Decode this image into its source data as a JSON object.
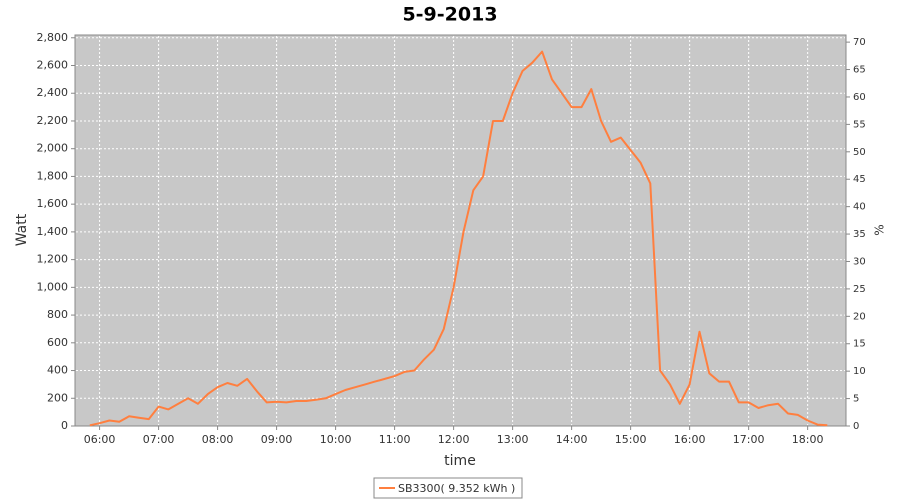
{
  "chart_data": {
    "type": "line",
    "title": "5-9-2013",
    "x_label": "time",
    "y_label": "Watt",
    "y2_label": "%",
    "x": [
      "05:50",
      "06:00",
      "06:10",
      "06:20",
      "06:30",
      "06:40",
      "06:50",
      "07:00",
      "07:10",
      "07:20",
      "07:30",
      "07:40",
      "07:50",
      "08:00",
      "08:10",
      "08:20",
      "08:30",
      "08:40",
      "08:50",
      "09:00",
      "09:10",
      "09:20",
      "09:30",
      "09:40",
      "09:50",
      "10:00",
      "10:10",
      "10:20",
      "10:30",
      "10:40",
      "10:50",
      "11:00",
      "11:10",
      "11:20",
      "11:30",
      "11:40",
      "11:50",
      "12:00",
      "12:10",
      "12:20",
      "12:30",
      "12:40",
      "12:50",
      "13:00",
      "13:10",
      "13:20",
      "13:30",
      "13:40",
      "13:50",
      "14:00",
      "14:10",
      "14:20",
      "14:30",
      "14:40",
      "14:50",
      "15:00",
      "15:10",
      "15:20",
      "15:30",
      "15:40",
      "15:50",
      "16:00",
      "16:10",
      "16:20",
      "16:30",
      "16:40",
      "16:50",
      "17:00",
      "17:10",
      "17:20",
      "17:30",
      "17:40",
      "17:50",
      "18:00",
      "18:10",
      "18:20"
    ],
    "series": [
      {
        "name": "SB3300( 9.352 kWh )",
        "color": "#ff7f3f",
        "values": [
          5,
          20,
          40,
          30,
          70,
          60,
          50,
          140,
          120,
          160,
          200,
          160,
          230,
          280,
          310,
          290,
          340,
          250,
          170,
          175,
          170,
          180,
          180,
          190,
          200,
          230,
          260,
          280,
          300,
          320,
          340,
          360,
          390,
          400,
          480,
          550,
          700,
          1000,
          1400,
          1700,
          1800,
          2200,
          2200,
          2400,
          2560,
          2620,
          2700,
          2500,
          2400,
          2300,
          2300,
          2430,
          2200,
          2050,
          2080,
          1990,
          1900,
          1750,
          400,
          300,
          160,
          300,
          680,
          380,
          320,
          320,
          170,
          170,
          130,
          150,
          160,
          90,
          80,
          40,
          10,
          5
        ]
      }
    ],
    "xlim": [
      "05:35",
      "18:39"
    ],
    "xticks": [
      "06:00",
      "07:00",
      "08:00",
      "09:00",
      "10:00",
      "11:00",
      "12:00",
      "13:00",
      "14:00",
      "15:00",
      "16:00",
      "17:00",
      "18:00"
    ],
    "ylim": [
      0,
      2820
    ],
    "yticks": [
      0,
      200,
      400,
      600,
      800,
      {
        "value": 1000,
        "label": "1,000"
      },
      {
        "value": 1200,
        "label": "1,200"
      },
      {
        "value": 1400,
        "label": "1,400"
      },
      {
        "value": 1600,
        "label": "1,600"
      },
      {
        "value": 1800,
        "label": "1,800"
      },
      {
        "value": 2000,
        "label": "2,000"
      },
      {
        "value": 2200,
        "label": "2,200"
      },
      {
        "value": 2400,
        "label": "2,400"
      },
      {
        "value": 2600,
        "label": "2,600"
      },
      {
        "value": 2800,
        "label": "2,800"
      }
    ],
    "y2lim": [
      0,
      71.3
    ],
    "y2ticks": [
      0,
      5,
      10,
      15,
      20,
      25,
      30,
      35,
      40,
      45,
      50,
      55,
      60,
      65,
      70
    ],
    "grid": true,
    "legend": "bottom"
  }
}
